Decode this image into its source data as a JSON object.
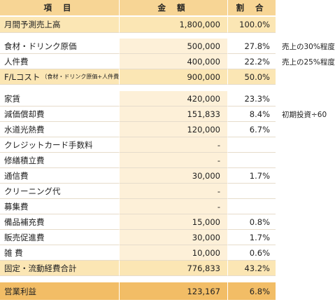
{
  "header": {
    "item": "項 目",
    "amount": "金 額",
    "ratio": "割 合"
  },
  "rows": [
    {
      "item": "月間予測売上高",
      "amount": "1,800,000",
      "ratio": "100.0%"
    },
    {
      "item": "食材・ドリンク原価",
      "amount": "500,000",
      "ratio": "27.8%"
    },
    {
      "item": "人件費",
      "amount": "400,000",
      "ratio": "22.2%"
    },
    {
      "item": "F/Lコスト",
      "item_sub": "（食材・ドリンク原価+人件費）",
      "amount": "900,000",
      "ratio": "50.0%"
    },
    {
      "item": "家賃",
      "amount": "420,000",
      "ratio": "23.3%"
    },
    {
      "item": "減価償却費",
      "amount": "151,833",
      "ratio": "8.4%"
    },
    {
      "item": "水道光熱費",
      "amount": "120,000",
      "ratio": "6.7%"
    },
    {
      "item": "クレジットカード手数料",
      "amount": "-",
      "ratio": ""
    },
    {
      "item": "修繕積立費",
      "amount": "-",
      "ratio": ""
    },
    {
      "item": "通信費",
      "amount": "30,000",
      "ratio": "1.7%"
    },
    {
      "item": "クリーニング代",
      "amount": "-",
      "ratio": ""
    },
    {
      "item": "募集費",
      "amount": "-",
      "ratio": ""
    },
    {
      "item": "備品補充費",
      "amount": "15,000",
      "ratio": "0.8%"
    },
    {
      "item": "販売促進費",
      "amount": "30,000",
      "ratio": "1.7%"
    },
    {
      "item": "雑 費",
      "amount": "10,000",
      "ratio": "0.6%"
    },
    {
      "item": "固定・流動経費合計",
      "amount": "776,833",
      "ratio": "43.2%"
    },
    {
      "item": "営業利益",
      "amount": "123,167",
      "ratio": "6.8%"
    }
  ],
  "notes": {
    "food_cost": "売上の30%程度",
    "labor_cost": "売上の25%程度",
    "depreciation": "初期投資÷60"
  },
  "colors": {
    "header_bg": "#f7d595",
    "highlight_bg": "#fbe6b4",
    "amount_column_bg": "#fdf0d8",
    "profit_row_bg": "#f2bd66"
  }
}
